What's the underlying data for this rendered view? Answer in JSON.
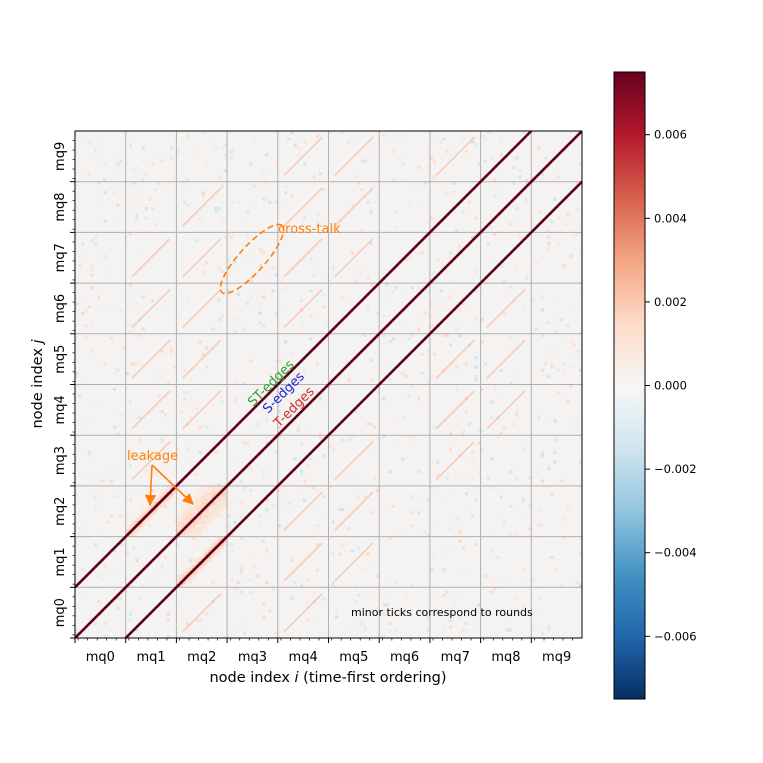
{
  "chart_data": {
    "type": "heatmap",
    "title": "",
    "xlabel_prefix": "node index ",
    "xlabel_var": "i",
    "xlabel_suffix": " (time-first ordering)",
    "ylabel_prefix": "node index ",
    "ylabel_var": "j",
    "x_tick_labels": [
      "mq0",
      "mq1",
      "mq2",
      "mq3",
      "mq4",
      "mq5",
      "mq6",
      "mq7",
      "mq8",
      "mq9"
    ],
    "y_tick_labels": [
      "mq0",
      "mq1",
      "mq2",
      "mq3",
      "mq4",
      "mq5",
      "mq6",
      "mq7",
      "mq8",
      "mq9"
    ],
    "grid": true,
    "colormap": "RdBu_r",
    "color_range": [
      -0.0075,
      0.0075
    ],
    "colorbar_ticks": [
      0.006,
      0.004,
      0.002,
      0.0,
      -0.002,
      -0.004,
      -0.006
    ],
    "colorbar_tick_labels": [
      "0.006",
      "0.004",
      "0.002",
      "0.000",
      "−0.002",
      "−0.004",
      "−0.006"
    ],
    "colorbar_placement": "right",
    "bands": [
      {
        "name": "ST-edges",
        "block_offset": 1,
        "value": 0.0075
      },
      {
        "name": "S-edges",
        "block_offset": 0,
        "value": 0.0075
      },
      {
        "name": "T-edges",
        "block_offset": -1,
        "value": 0.0075
      }
    ],
    "leakage_regions": [
      {
        "x_block": 1,
        "y_block": 2,
        "value": 0.004
      },
      {
        "x_block": 2,
        "y_block": 2,
        "value": 0.0025
      },
      {
        "x_block": 2,
        "y_block": 1,
        "value": 0.004
      }
    ],
    "annotations": {
      "st_edges": "ST-edges",
      "s_edges": "S-edges",
      "t_edges": "T-edges",
      "leakage": "leakage",
      "crosstalk": "cross-talk",
      "minor_ticks_note": "minor ticks correspond to rounds"
    },
    "colors": {
      "st_edges": "#2ca02c",
      "s_edges": "#1f1fd6",
      "t_edges": "#d62728",
      "annotation_orange": "#ff7f0e"
    }
  }
}
